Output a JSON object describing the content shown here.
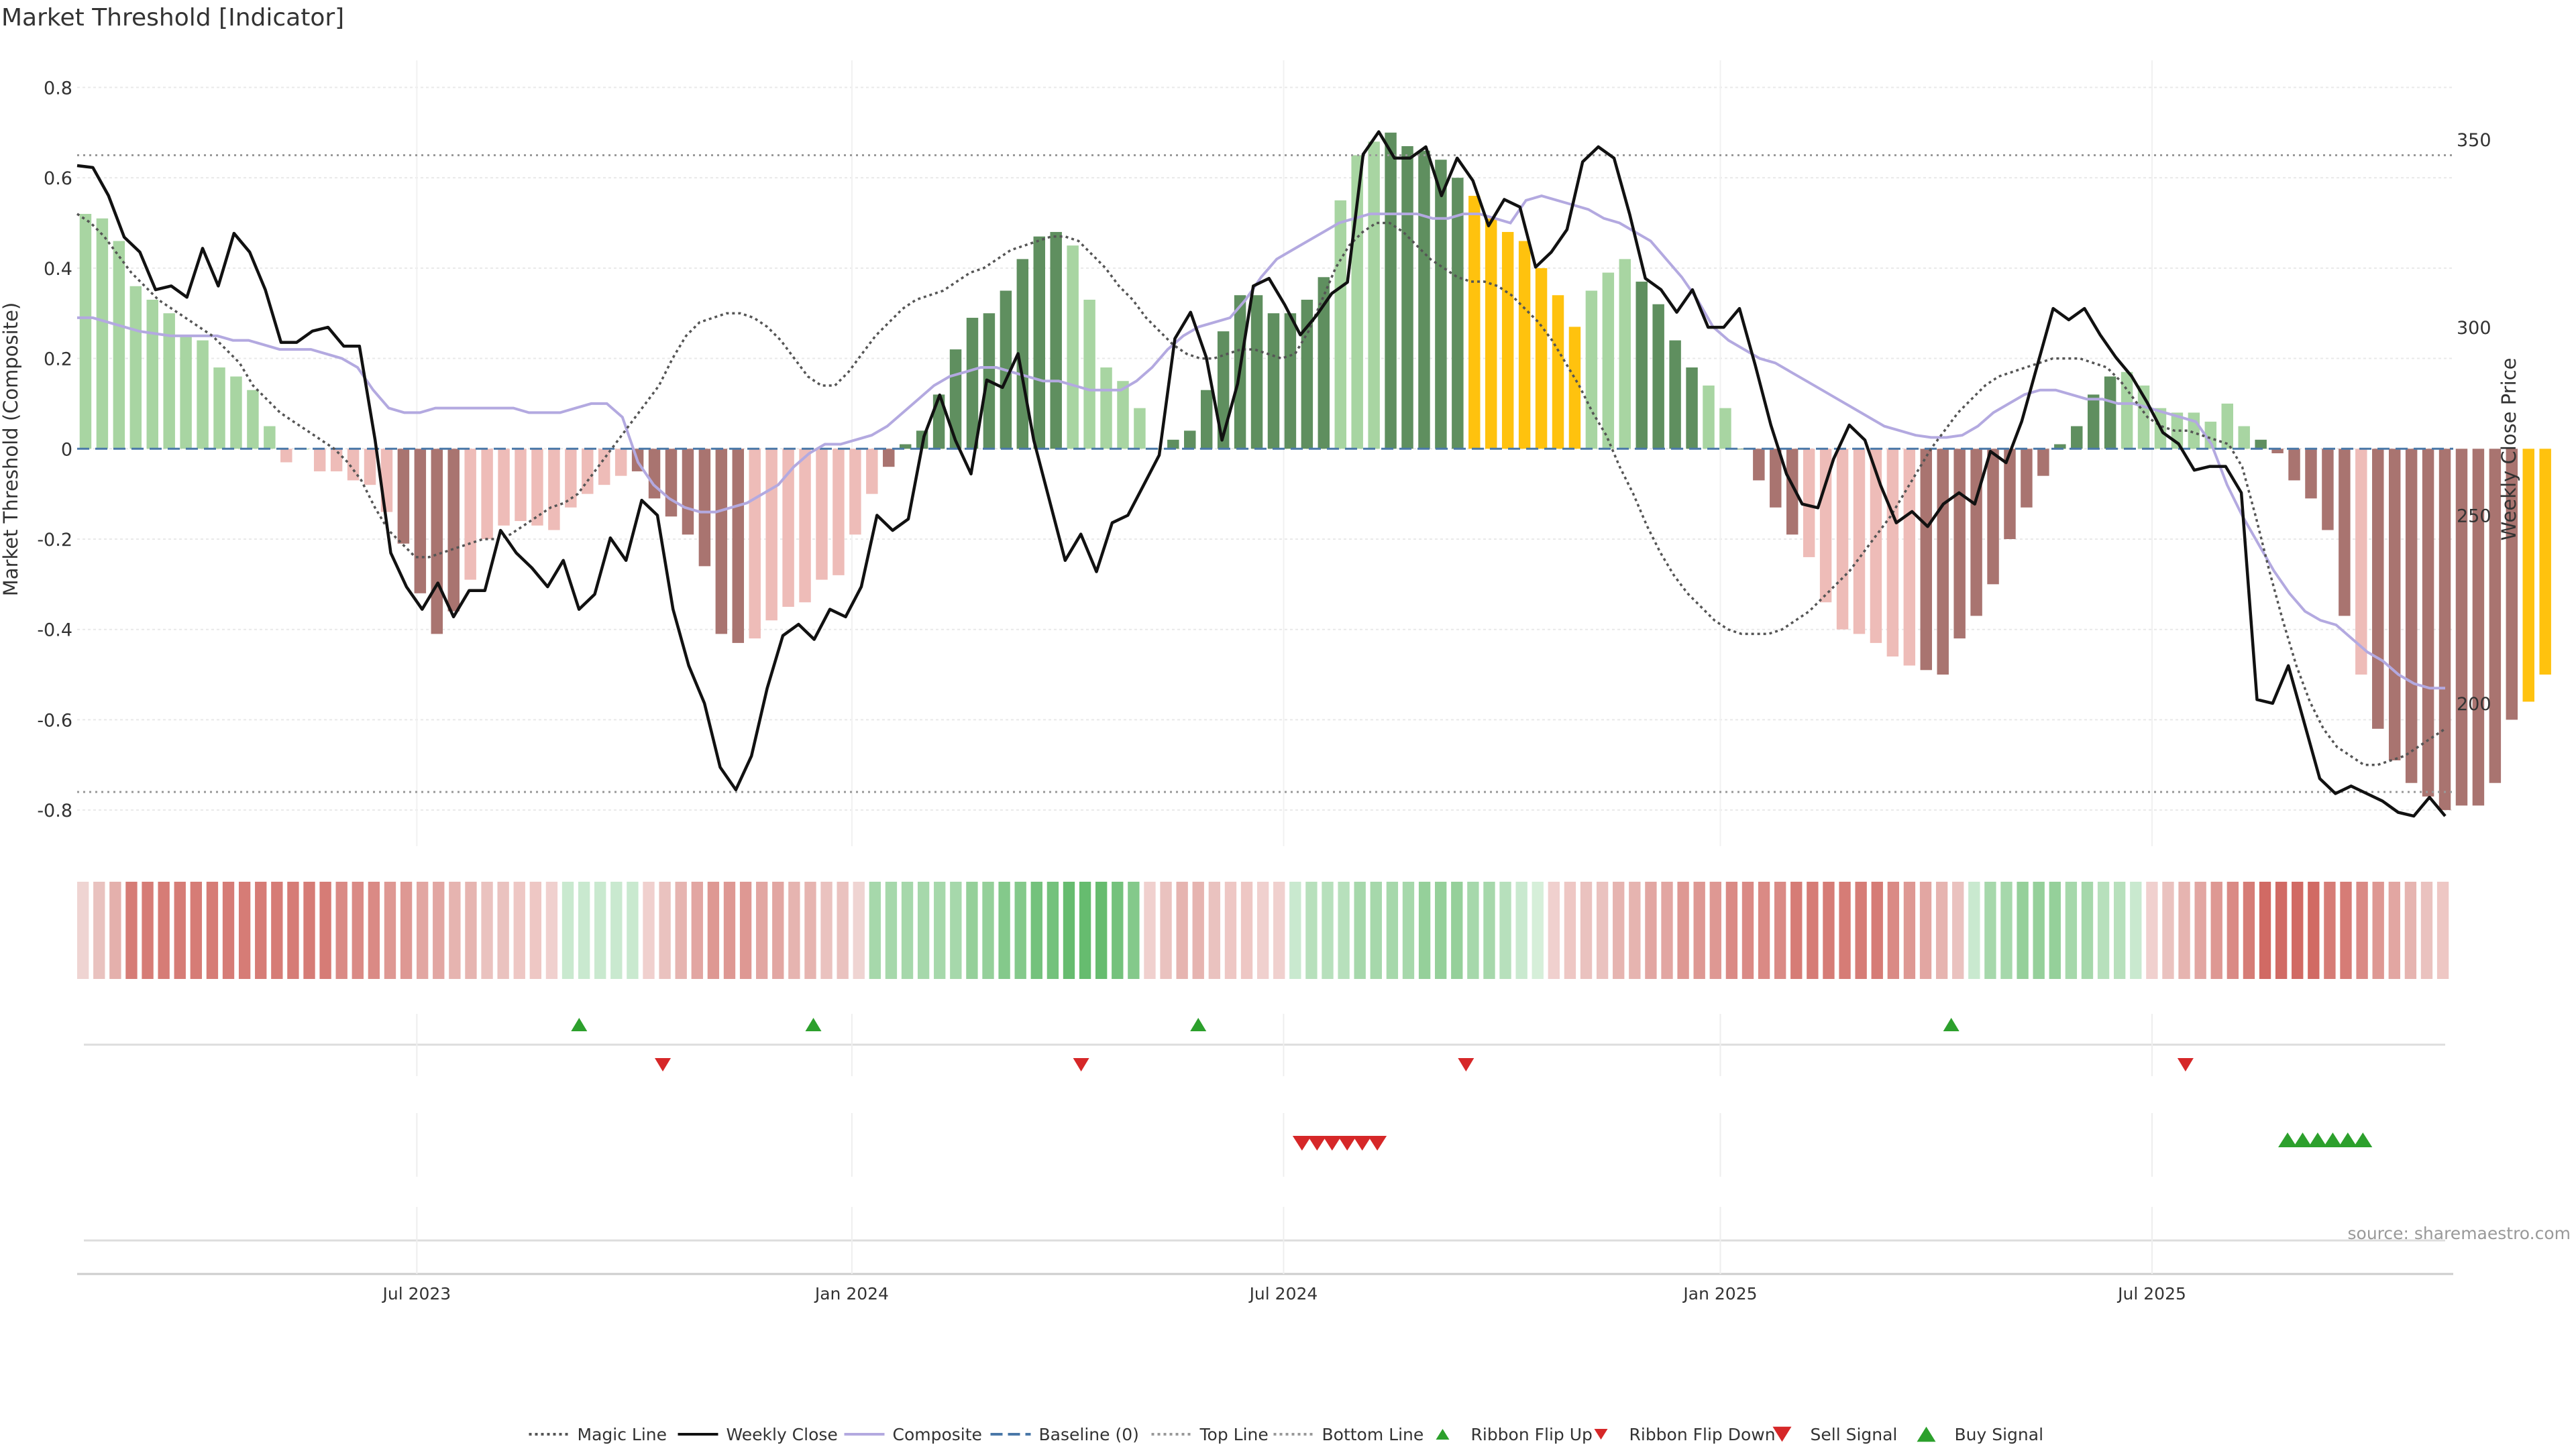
{
  "chart_data": {
    "type": "bar",
    "title": "Market Threshold [Indicator]",
    "source": "source: sharemaestro.com",
    "ylabel_left": "Market Threshold (Composite)",
    "ylabel_right": "Weekly Close Price",
    "ylim_left": [
      -0.88,
      0.86
    ],
    "ylim_right": [
      162,
      371
    ],
    "yticks_left": [
      -0.8,
      -0.6,
      -0.4,
      -0.2,
      0,
      0.2,
      0.4,
      0.6,
      0.8
    ],
    "ytick_labels_left": [
      "-0.8",
      "-0.6",
      "-0.4",
      "-0.2",
      "0",
      "0.2",
      "0.4",
      "0.6",
      "0.8"
    ],
    "yticks_right": [
      200,
      250,
      300,
      350
    ],
    "ytick_labels_right": [
      "200",
      "250",
      "300",
      "350"
    ],
    "x_week_range": [
      0,
      142
    ],
    "xticks": [
      {
        "label": "Jul 2023",
        "week": 20.3
      },
      {
        "label": "Jan 2024",
        "week": 46.3
      },
      {
        "label": "Jul 2024",
        "week": 72.1
      },
      {
        "label": "Jan 2025",
        "week": 98.2
      },
      {
        "label": "Jul 2025",
        "week": 124
      }
    ],
    "top_line": 0.65,
    "bottom_line": -0.76,
    "colors": {
      "strong_pos": "#5f8f5f",
      "weak_pos": "#a8d5a2",
      "strong_neg": "#a97470",
      "weak_neg": "#eebcb8",
      "extreme": "#ffc20e",
      "weekly_close": "#111111",
      "composite": "#b3a9e0",
      "magic": "#555555",
      "baseline": "#4a78a8",
      "threshold": "#999999",
      "flip_up": "#2ca02c",
      "flip_down": "#d62728",
      "grid": "#e9e9e9"
    },
    "legend": [
      {
        "label": "Magic Line",
        "kind": "dotted",
        "color": "#555555"
      },
      {
        "label": "Weekly Close",
        "kind": "solid",
        "color": "#111111"
      },
      {
        "label": "Composite",
        "kind": "solid",
        "color": "#b3a9e0"
      },
      {
        "label": "Baseline (0)",
        "kind": "dashed",
        "color": "#4a78a8"
      },
      {
        "label": "Top Line",
        "kind": "dotted",
        "color": "#999999"
      },
      {
        "label": "Bottom Line",
        "kind": "dotted",
        "color": "#999999"
      },
      {
        "label": "Ribbon Flip Up",
        "kind": "tri-up-small",
        "color": "#2ca02c"
      },
      {
        "label": "Ribbon Flip Down",
        "kind": "tri-down-small",
        "color": "#d62728"
      },
      {
        "label": "Sell Signal",
        "kind": "tri-down",
        "color": "#d62728"
      },
      {
        "label": "Buy Signal",
        "kind": "tri-up",
        "color": "#2ca02c"
      }
    ],
    "composite_bars": [
      0.52,
      0.51,
      0.46,
      0.36,
      0.33,
      0.3,
      0.25,
      0.24,
      0.18,
      0.16,
      0.13,
      0.05,
      -0.03,
      0,
      -0.05,
      -0.05,
      -0.07,
      -0.08,
      -0.14,
      -0.21,
      -0.32,
      -0.41,
      -0.36,
      -0.29,
      -0.2,
      -0.17,
      -0.16,
      -0.17,
      -0.18,
      -0.13,
      -0.1,
      -0.08,
      -0.06,
      -0.05,
      -0.11,
      -0.15,
      -0.19,
      -0.26,
      -0.41,
      -0.43,
      -0.42,
      -0.38,
      -0.35,
      -0.34,
      -0.29,
      -0.28,
      -0.19,
      -0.1,
      -0.04,
      0.01,
      0.04,
      0.12,
      0.22,
      0.29,
      0.3,
      0.35,
      0.42,
      0.47,
      0.48,
      0.45,
      0.33,
      0.18,
      0.15,
      0.09,
      0,
      0.02,
      0.04,
      0.13,
      0.26,
      0.34,
      0.34,
      0.3,
      0.3,
      0.33,
      0.38,
      0.55,
      0.65,
      0.68,
      0.7,
      0.67,
      0.66,
      0.64,
      0.6,
      0.56,
      0.51,
      0.48,
      0.46,
      0.4,
      0.34,
      0.27,
      0.35,
      0.39,
      0.42,
      0.37,
      0.32,
      0.24,
      0.18,
      0.14,
      0.09,
      0,
      -0.07,
      -0.13,
      -0.19,
      -0.24,
      -0.34,
      -0.4,
      -0.41,
      -0.43,
      -0.46,
      -0.48,
      -0.49,
      -0.5,
      -0.42,
      -0.37,
      -0.3,
      -0.2,
      -0.13,
      -0.06,
      0.01,
      0.05,
      0.12,
      0.16,
      0.17,
      0.14,
      0.09,
      0.08,
      0.08,
      0.06,
      0.1,
      0.05,
      0.02,
      -0.01,
      -0.07,
      -0.11,
      -0.18,
      -0.37,
      -0.5,
      -0.62,
      -0.69,
      -0.74,
      -0.77,
      -0.8,
      -0.79,
      -0.79,
      -0.74,
      -0.6,
      -0.56,
      -0.5
    ],
    "bar_classes": "WWWWWWWWWWWWWW.MMMMSSSSMMMMMMMMMMSSSSSSSMMMMMMMMSSSSSSSSSSSWWWWWWSSSSSSSSSSWWWSSSSSEEEEEEEWWWSSSSWWSSSSWWWWWWWSSSSSSSSSSSSWWWWWWWWSSSSSSWSSSSSSSSSEEEEEEEEWWWW",
    "weekly_close": [
      343,
      342.5,
      335,
      324,
      320,
      310,
      311,
      308,
      321,
      311,
      325,
      320,
      310,
      296,
      296,
      299,
      300,
      295,
      295,
      270,
      240,
      231,
      225,
      232,
      223,
      230,
      230,
      246,
      240,
      236,
      231,
      238,
      225,
      229,
      244,
      238,
      254,
      250,
      225,
      210,
      200,
      183,
      177,
      186,
      204,
      218,
      221,
      217,
      225,
      223,
      231,
      250,
      246,
      249,
      271,
      282,
      270,
      261,
      286,
      284,
      293,
      270,
      254,
      238,
      245,
      235,
      248,
      250,
      258,
      266,
      297,
      304,
      292,
      270,
      285,
      311,
      313,
      306,
      298,
      303,
      309,
      312,
      346,
      352,
      345,
      345,
      348,
      335,
      345,
      339,
      327,
      334,
      332,
      316,
      320,
      326,
      344,
      348,
      345,
      330,
      313,
      310,
      304,
      310,
      300,
      300,
      305,
      290,
      274,
      261,
      253,
      252,
      265,
      274,
      270,
      258,
      248,
      251,
      247,
      253,
      256,
      253,
      267,
      264,
      275,
      290,
      305,
      302,
      305,
      298,
      292,
      287,
      280,
      272,
      269,
      262,
      263,
      263,
      256,
      201,
      200,
      210,
      195,
      180,
      176,
      178,
      176,
      174,
      171,
      170,
      175,
      170
    ],
    "composite_line": [
      0.29,
      0.29,
      0.28,
      0.27,
      0.26,
      0.255,
      0.25,
      0.25,
      0.25,
      0.25,
      0.24,
      0.24,
      0.23,
      0.22,
      0.22,
      0.22,
      0.21,
      0.2,
      0.18,
      0.13,
      0.09,
      0.08,
      0.08,
      0.09,
      0.09,
      0.09,
      0.09,
      0.09,
      0.09,
      0.08,
      0.08,
      0.08,
      0.09,
      0.1,
      0.1,
      0.07,
      -0.03,
      -0.08,
      -0.11,
      -0.13,
      -0.14,
      -0.14,
      -0.13,
      -0.12,
      -0.1,
      -0.08,
      -0.04,
      -0.01,
      0.01,
      0.01,
      0.02,
      0.03,
      0.05,
      0.08,
      0.11,
      0.14,
      0.16,
      0.17,
      0.18,
      0.18,
      0.17,
      0.16,
      0.15,
      0.15,
      0.14,
      0.13,
      0.13,
      0.13,
      0.15,
      0.18,
      0.22,
      0.25,
      0.27,
      0.28,
      0.29,
      0.33,
      0.38,
      0.42,
      0.44,
      0.46,
      0.48,
      0.5,
      0.51,
      0.52,
      0.52,
      0.52,
      0.52,
      0.51,
      0.51,
      0.52,
      0.52,
      0.51,
      0.5,
      0.55,
      0.56,
      0.55,
      0.54,
      0.53,
      0.51,
      0.5,
      0.48,
      0.46,
      0.42,
      0.38,
      0.33,
      0.27,
      0.24,
      0.22,
      0.2,
      0.19,
      0.17,
      0.15,
      0.13,
      0.11,
      0.09,
      0.07,
      0.05,
      0.04,
      0.03,
      0.025,
      0.025,
      0.03,
      0.05,
      0.08,
      0.1,
      0.12,
      0.13,
      0.13,
      0.12,
      0.11,
      0.11,
      0.1,
      0.1,
      0.09,
      0.08,
      0.07,
      0.06,
      0.01,
      -0.08,
      -0.15,
      -0.21,
      -0.27,
      -0.32,
      -0.36,
      -0.38,
      -0.39,
      -0.42,
      -0.45,
      -0.47,
      -0.5,
      -0.52,
      -0.53,
      -0.53
    ],
    "magic_line": [
      0.52,
      0.5,
      0.47,
      0.43,
      0.39,
      0.36,
      0.33,
      0.31,
      0.29,
      0.27,
      0.25,
      0.22,
      0.19,
      0.14,
      0.11,
      0.08,
      0.06,
      0.04,
      0.02,
      0,
      -0.03,
      -0.07,
      -0.13,
      -0.18,
      -0.21,
      -0.24,
      -0.24,
      -0.23,
      -0.22,
      -0.21,
      -0.2,
      -0.2,
      -0.19,
      -0.17,
      -0.15,
      -0.13,
      -0.12,
      -0.1,
      -0.06,
      -0.02,
      0.02,
      0.06,
      0.1,
      0.14,
      0.2,
      0.25,
      0.28,
      0.29,
      0.3,
      0.3,
      0.29,
      0.27,
      0.24,
      0.2,
      0.16,
      0.14,
      0.14,
      0.17,
      0.21,
      0.25,
      0.28,
      0.31,
      0.33,
      0.34,
      0.35,
      0.37,
      0.39,
      0.4,
      0.42,
      0.44,
      0.45,
      0.46,
      0.47,
      0.47,
      0.46,
      0.43,
      0.4,
      0.36,
      0.33,
      0.29,
      0.26,
      0.23,
      0.21,
      0.2,
      0.2,
      0.21,
      0.22,
      0.22,
      0.21,
      0.2,
      0.21,
      0.26,
      0.33,
      0.4,
      0.45,
      0.48,
      0.5,
      0.5,
      0.48,
      0.45,
      0.42,
      0.4,
      0.38,
      0.37,
      0.37,
      0.36,
      0.34,
      0.31,
      0.28,
      0.24,
      0.19,
      0.14,
      0.08,
      0.03,
      -0.04,
      -0.1,
      -0.17,
      -0.23,
      -0.28,
      -0.32,
      -0.35,
      -0.38,
      -0.4,
      -0.41,
      -0.41,
      -0.41,
      -0.4,
      -0.38,
      -0.36,
      -0.33,
      -0.3,
      -0.27,
      -0.23,
      -0.19,
      -0.15,
      -0.1,
      -0.05,
      0,
      0.04,
      0.08,
      0.11,
      0.14,
      0.16,
      0.17,
      0.18,
      0.19,
      0.2,
      0.2,
      0.2,
      0.19,
      0.18,
      0.15,
      0.11,
      0.07,
      0.05,
      0.04,
      0.04,
      0.03,
      0.02,
      0.01,
      -0.04,
      -0.15,
      -0.27,
      -0.38,
      -0.48,
      -0.56,
      -0.62,
      -0.66,
      -0.68,
      -0.7,
      -0.7,
      -0.69,
      -0.68,
      -0.66,
      -0.64,
      -0.62
    ],
    "ribbon_colors": [
      "#efd4d2",
      "#e9c2bf",
      "#e4b0ac",
      "#d67c76",
      "#d67c76",
      "#d67c76",
      "#d67c76",
      "#d67c76",
      "#d67c76",
      "#d67c76",
      "#d67c76",
      "#d67c76",
      "#d67c76",
      "#d67c76",
      "#d67c76",
      "#d67c76",
      "#da8a85",
      "#da8a85",
      "#da8a85",
      "#de9893",
      "#de9893",
      "#e2a6a2",
      "#e2a6a2",
      "#e6b4b0",
      "#e6b4b0",
      "#eac2bf",
      "#eac2bf",
      "#eec7c4",
      "#eec7c4",
      "#f0d0ce",
      "#c9e9cf",
      "#c9e9cf",
      "#c9e9cf",
      "#c9e9cf",
      "#c9e9cf",
      "#f0d0ce",
      "#eac2bf",
      "#e6b4b0",
      "#e2a6a2",
      "#de9893",
      "#de9893",
      "#de9893",
      "#e2a6a2",
      "#e2a6a2",
      "#e6b4b0",
      "#e6b4b0",
      "#eac2bf",
      "#eac2bf",
      "#efd4d2",
      "#a6d8ab",
      "#a6d8ab",
      "#a6d8ab",
      "#a6d8ab",
      "#a6d8ab",
      "#a6d8ab",
      "#95d09a",
      "#95d09a",
      "#84c98b",
      "#84c98b",
      "#74c27c",
      "#74c27c",
      "#66bc6f",
      "#66bc6f",
      "#66bc6f",
      "#74c27c",
      "#84c98b",
      "#f0d0ce",
      "#eac2bf",
      "#e6b4b0",
      "#e6b4b0",
      "#eac2bf",
      "#eec7c4",
      "#eec7c4",
      "#f0d0ce",
      "#f0d0ce",
      "#c9e9cf",
      "#b7e0bc",
      "#b7e0bc",
      "#b7e0bc",
      "#a6d8ab",
      "#a6d8ab",
      "#a6d8ab",
      "#a6d8ab",
      "#95d09a",
      "#95d09a",
      "#95d09a",
      "#a6d8ab",
      "#a6d8ab",
      "#b7e0bc",
      "#c9e9cf",
      "#d6efd9",
      "#f0d0ce",
      "#eec7c4",
      "#eac2bf",
      "#eac2bf",
      "#e6b4b0",
      "#e6b4b0",
      "#e2a6a2",
      "#e2a6a2",
      "#de9893",
      "#de9893",
      "#de9893",
      "#da8a85",
      "#da8a85",
      "#da8a85",
      "#da8a85",
      "#d67c76",
      "#d67c76",
      "#d67c76",
      "#d67c76",
      "#d67c76",
      "#d67c76",
      "#da8a85",
      "#de9893",
      "#e2a6a2",
      "#e6b4b0",
      "#eac2bf",
      "#c9e9cf",
      "#a6d8ab",
      "#a6d8ab",
      "#95d09a",
      "#95d09a",
      "#95d09a",
      "#a6d8ab",
      "#a6d8ab",
      "#b7e0bc",
      "#b7e0bc",
      "#c9e9cf",
      "#f0d0ce",
      "#eac2bf",
      "#e6b4b0",
      "#e2a6a2",
      "#de9893",
      "#da8a85",
      "#d67c76",
      "#d16a64",
      "#d16a64",
      "#d16a64",
      "#d16a64",
      "#d67c76",
      "#d67c76",
      "#da8a85",
      "#de9893",
      "#e2a6a2",
      "#e6b4b0",
      "#eac2bf",
      "#eec7c4"
    ],
    "ribbon_flips_up_weeks": [
      30,
      44,
      67,
      112
    ],
    "ribbon_flips_down_weeks": [
      35,
      60,
      83,
      126
    ],
    "sell_signal_weeks": [
      73.2,
      74.1,
      75,
      75.9,
      76.8,
      77.7
    ],
    "buy_signal_weeks": [
      132.1,
      133,
      133.9,
      134.8,
      135.7,
      136.6
    ]
  }
}
